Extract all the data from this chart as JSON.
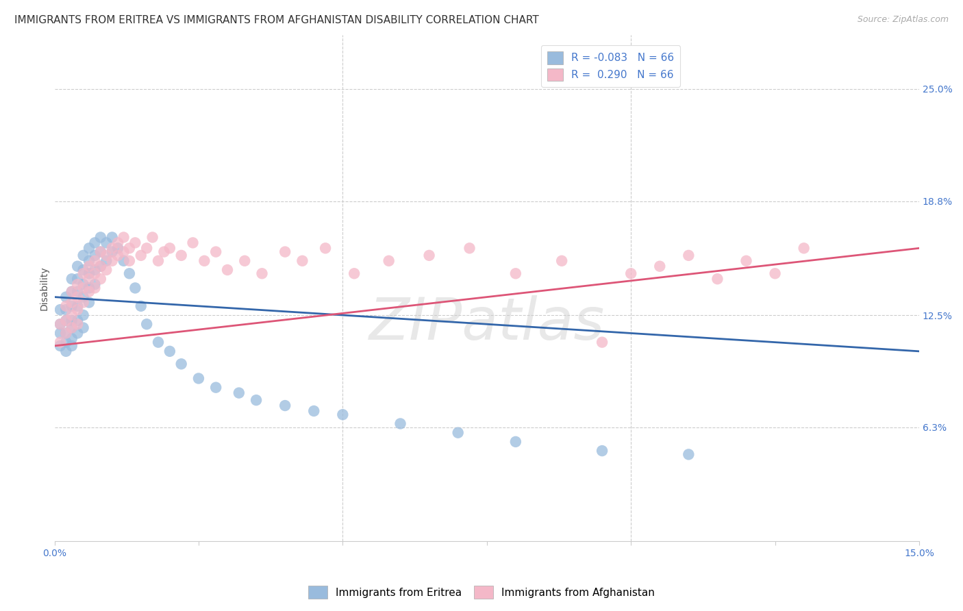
{
  "title": "IMMIGRANTS FROM ERITREA VS IMMIGRANTS FROM AFGHANISTAN DISABILITY CORRELATION CHART",
  "source": "Source: ZipAtlas.com",
  "ylabel": "Disability",
  "xlim": [
    0.0,
    0.15
  ],
  "ylim": [
    0.0,
    0.28
  ],
  "ytick_positions": [
    0.063,
    0.125,
    0.188,
    0.25
  ],
  "ytick_labels": [
    "6.3%",
    "12.5%",
    "18.8%",
    "25.0%"
  ],
  "grid_color": "#cccccc",
  "background_color": "#ffffff",
  "eritrea_color": "#99bbdd",
  "eritrea_line_color": "#3366aa",
  "afghanistan_color": "#f4b8c8",
  "afghanistan_line_color": "#dd5577",
  "eritrea_x": [
    0.001,
    0.001,
    0.001,
    0.001,
    0.002,
    0.002,
    0.002,
    0.002,
    0.002,
    0.002,
    0.003,
    0.003,
    0.003,
    0.003,
    0.003,
    0.003,
    0.003,
    0.004,
    0.004,
    0.004,
    0.004,
    0.004,
    0.004,
    0.005,
    0.005,
    0.005,
    0.005,
    0.005,
    0.005,
    0.006,
    0.006,
    0.006,
    0.006,
    0.006,
    0.007,
    0.007,
    0.007,
    0.007,
    0.008,
    0.008,
    0.008,
    0.009,
    0.009,
    0.01,
    0.01,
    0.011,
    0.012,
    0.013,
    0.014,
    0.015,
    0.016,
    0.018,
    0.02,
    0.022,
    0.025,
    0.028,
    0.032,
    0.035,
    0.04,
    0.045,
    0.05,
    0.06,
    0.07,
    0.08,
    0.095,
    0.11
  ],
  "eritrea_y": [
    0.128,
    0.12,
    0.115,
    0.108,
    0.135,
    0.128,
    0.122,
    0.115,
    0.11,
    0.105,
    0.145,
    0.138,
    0.13,
    0.122,
    0.118,
    0.112,
    0.108,
    0.152,
    0.145,
    0.138,
    0.13,
    0.122,
    0.115,
    0.158,
    0.15,
    0.142,
    0.135,
    0.125,
    0.118,
    0.162,
    0.155,
    0.148,
    0.14,
    0.132,
    0.165,
    0.158,
    0.15,
    0.142,
    0.168,
    0.16,
    0.152,
    0.165,
    0.155,
    0.168,
    0.16,
    0.162,
    0.155,
    0.148,
    0.14,
    0.13,
    0.12,
    0.11,
    0.105,
    0.098,
    0.09,
    0.085,
    0.082,
    0.078,
    0.075,
    0.072,
    0.07,
    0.065,
    0.06,
    0.055,
    0.05,
    0.048
  ],
  "afghanistan_x": [
    0.001,
    0.001,
    0.002,
    0.002,
    0.002,
    0.003,
    0.003,
    0.003,
    0.003,
    0.004,
    0.004,
    0.004,
    0.004,
    0.005,
    0.005,
    0.005,
    0.006,
    0.006,
    0.006,
    0.007,
    0.007,
    0.007,
    0.008,
    0.008,
    0.008,
    0.009,
    0.009,
    0.01,
    0.01,
    0.011,
    0.011,
    0.012,
    0.012,
    0.013,
    0.013,
    0.014,
    0.015,
    0.016,
    0.017,
    0.018,
    0.019,
    0.02,
    0.022,
    0.024,
    0.026,
    0.028,
    0.03,
    0.033,
    0.036,
    0.04,
    0.043,
    0.047,
    0.052,
    0.058,
    0.065,
    0.072,
    0.08,
    0.088,
    0.095,
    0.1,
    0.105,
    0.11,
    0.115,
    0.12,
    0.125,
    0.13
  ],
  "afghanistan_y": [
    0.12,
    0.11,
    0.13,
    0.122,
    0.115,
    0.138,
    0.132,
    0.125,
    0.118,
    0.142,
    0.135,
    0.128,
    0.12,
    0.148,
    0.14,
    0.132,
    0.152,
    0.145,
    0.138,
    0.155,
    0.148,
    0.14,
    0.16,
    0.152,
    0.145,
    0.158,
    0.15,
    0.162,
    0.155,
    0.165,
    0.158,
    0.168,
    0.16,
    0.162,
    0.155,
    0.165,
    0.158,
    0.162,
    0.168,
    0.155,
    0.16,
    0.162,
    0.158,
    0.165,
    0.155,
    0.16,
    0.15,
    0.155,
    0.148,
    0.16,
    0.155,
    0.162,
    0.148,
    0.155,
    0.158,
    0.162,
    0.148,
    0.155,
    0.11,
    0.148,
    0.152,
    0.158,
    0.145,
    0.155,
    0.148,
    0.162
  ],
  "eritrea_trend": [
    0.135,
    0.105
  ],
  "afghanistan_trend": [
    0.108,
    0.162
  ],
  "watermark": "ZIPatlas",
  "title_fontsize": 11,
  "axis_label_fontsize": 10,
  "tick_fontsize": 10,
  "legend_R_eritrea": "R = -0.083",
  "legend_N_eritrea": "N = 66",
  "legend_R_afghanistan": "R =  0.290",
  "legend_N_afghanistan": "N = 66"
}
